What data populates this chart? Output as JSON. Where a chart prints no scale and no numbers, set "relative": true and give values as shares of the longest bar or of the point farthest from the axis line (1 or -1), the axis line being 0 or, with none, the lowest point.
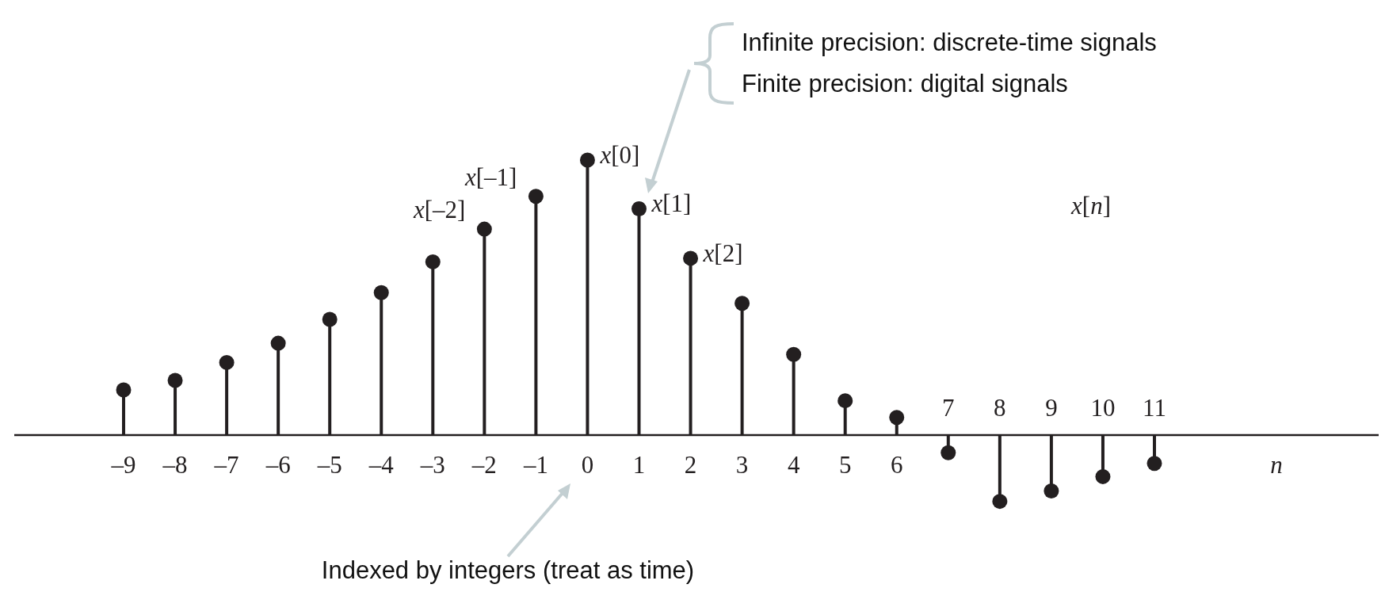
{
  "chart_data": {
    "type": "lollipop",
    "relative": true,
    "xlabel": "n",
    "color": "#231f20",
    "categories": [
      "–9",
      "–8",
      "–7",
      "–6",
      "–5",
      "–4",
      "–3",
      "–2",
      "–1",
      "0",
      "1",
      "2",
      "3",
      "4",
      "5",
      "6",
      "7",
      "8",
      "9",
      "10",
      "11"
    ],
    "values": [
      0.164,
      0.199,
      0.264,
      0.334,
      0.421,
      0.518,
      0.63,
      0.749,
      0.868,
      1,
      0.823,
      0.643,
      0.479,
      0.293,
      0.125,
      0.064,
      -0.064,
      -0.241,
      -0.203,
      -0.151,
      -0.103
    ],
    "annotations": [
      {
        "text": "x[–2]",
        "x": "–2",
        "y": 0.749
      },
      {
        "text": "x[–1]",
        "x": "–1",
        "y": 0.868
      },
      {
        "text": "x[0]",
        "x": "0",
        "y": 1
      },
      {
        "text": "x[1]",
        "x": "1",
        "y": 0.823
      },
      {
        "text": "x[2]",
        "x": "2",
        "y": 0.643
      },
      "x[n]",
      "Infinite precision: discrete-time signals",
      "Finite precision: digital signals",
      "Indexed by integers (treat as time)"
    ]
  }
}
